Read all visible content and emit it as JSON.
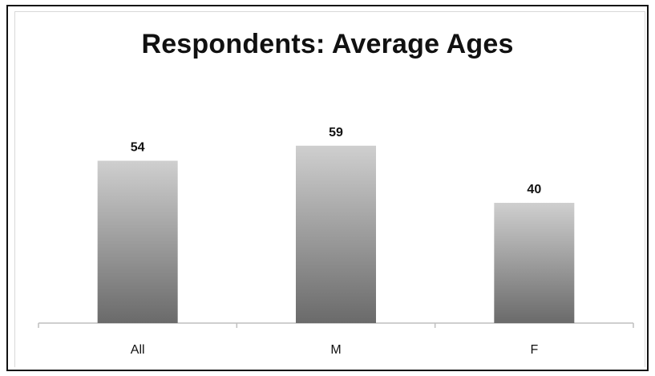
{
  "chart_data": {
    "type": "bar",
    "title": "Respondents: Average Ages",
    "categories": [
      "All",
      "M",
      "F"
    ],
    "values": [
      54,
      59,
      40
    ],
    "data_labels": [
      "54",
      "59",
      "40"
    ],
    "xlabel": "",
    "ylabel": "",
    "ylim": [
      0,
      80
    ],
    "grid": false,
    "legend": "none",
    "bar_gradient": [
      "#cfcfcf",
      "#6a6a6a"
    ]
  }
}
